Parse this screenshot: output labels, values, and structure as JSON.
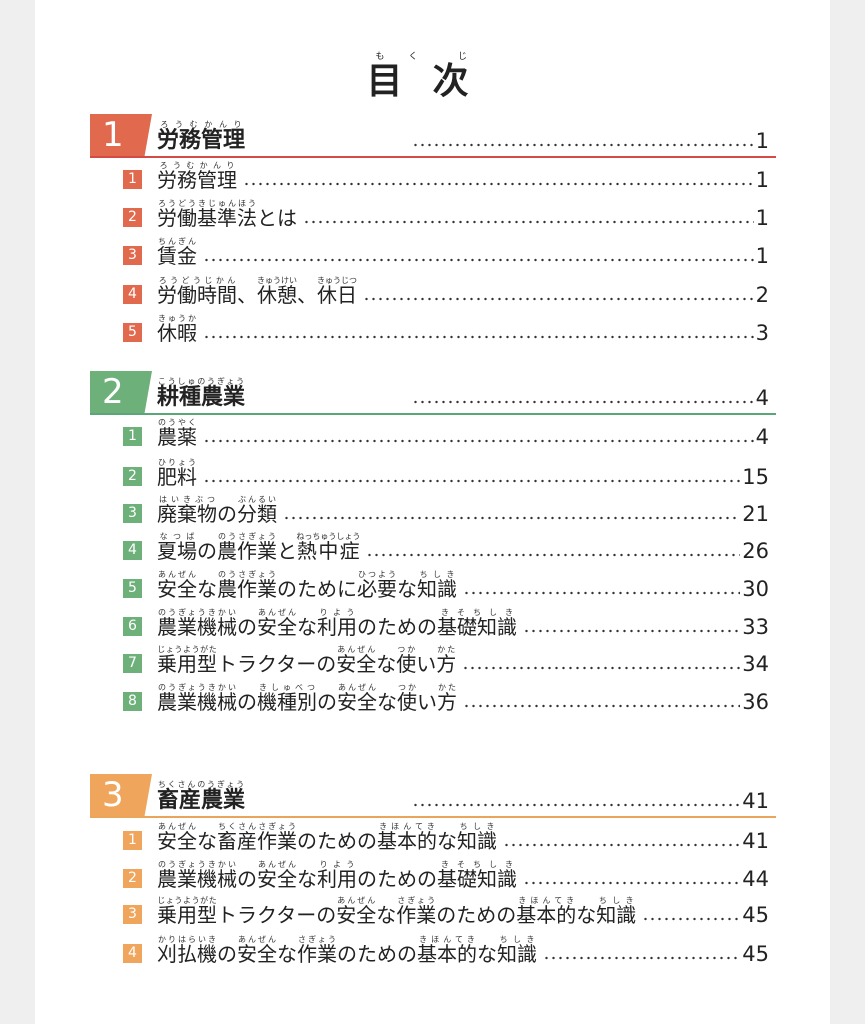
{
  "title": {
    "text": "目次",
    "ruby": [
      [
        "目",
        "もく"
      ],
      [
        "次",
        "じ"
      ]
    ]
  },
  "colors": {
    "s1": "#e0694e",
    "s1_line": "#d44a45",
    "s2": "#6db07a",
    "s2_line": "#5aa676",
    "s3": "#f0a55c",
    "s3_line": "#e9a55a"
  },
  "sections": [
    {
      "number": "1",
      "title": [
        [
          "労務管理",
          "ろうむかんり"
        ]
      ],
      "page": "1",
      "items": [
        {
          "number": "1",
          "title": [
            [
              "労務管理",
              "ろうむかんり"
            ]
          ],
          "page": "1"
        },
        {
          "number": "2",
          "title": [
            [
              "労働基準法",
              "ろうどうきじゅんほう"
            ],
            [
              "とは",
              ""
            ]
          ],
          "page": "1"
        },
        {
          "number": "3",
          "title": [
            [
              "賃金",
              "ちんぎん"
            ]
          ],
          "page": "1"
        },
        {
          "number": "4",
          "title": [
            [
              "労働時間",
              "ろうどうじかん"
            ],
            [
              "、",
              ""
            ],
            [
              "休憩",
              "きゅうけい"
            ],
            [
              "、",
              ""
            ],
            [
              "休日",
              "きゅうじつ"
            ]
          ],
          "page": "2"
        },
        {
          "number": "5",
          "title": [
            [
              "休暇",
              "きゅうか"
            ]
          ],
          "page": "3"
        }
      ]
    },
    {
      "number": "2",
      "title": [
        [
          "耕種農業",
          "こうしゅのうぎょう"
        ]
      ],
      "page": "4",
      "items": [
        {
          "number": "1",
          "title": [
            [
              "農薬",
              "のうやく"
            ]
          ],
          "page": "4"
        },
        {
          "number": "2",
          "title": [
            [
              "肥料",
              "ひりょう"
            ]
          ],
          "page": "15"
        },
        {
          "number": "3",
          "title": [
            [
              "廃棄物",
              "はいきぶつ"
            ],
            [
              "の",
              ""
            ],
            [
              "分類",
              "ぶんるい"
            ]
          ],
          "page": "21"
        },
        {
          "number": "4",
          "title": [
            [
              "夏場",
              "なつば"
            ],
            [
              "の",
              ""
            ],
            [
              "農作業",
              "のうさぎょう"
            ],
            [
              "と",
              ""
            ],
            [
              "熱中症",
              "ねっちゅうしょう"
            ]
          ],
          "page": "26"
        },
        {
          "number": "5",
          "title": [
            [
              "安全",
              "あんぜん"
            ],
            [
              "な",
              ""
            ],
            [
              "農作業",
              "のうさぎょう"
            ],
            [
              "のために",
              ""
            ],
            [
              "必要",
              "ひつよう"
            ],
            [
              "な",
              ""
            ],
            [
              "知識",
              "ちしき"
            ]
          ],
          "page": "30"
        },
        {
          "number": "6",
          "title": [
            [
              "農業機械",
              "のうぎょうきかい"
            ],
            [
              "の",
              ""
            ],
            [
              "安全",
              "あんぜん"
            ],
            [
              "な",
              ""
            ],
            [
              "利用",
              "りよう"
            ],
            [
              "のための",
              ""
            ],
            [
              "基礎知識",
              "きそちしき"
            ]
          ],
          "page": "33"
        },
        {
          "number": "7",
          "title": [
            [
              "乗用型",
              "じょうようがた"
            ],
            [
              "トラクターの",
              ""
            ],
            [
              "安全",
              "あんぜん"
            ],
            [
              "な",
              ""
            ],
            [
              "使",
              "つか"
            ],
            [
              "い",
              ""
            ],
            [
              "方",
              "かた"
            ]
          ],
          "page": "34"
        },
        {
          "number": "8",
          "title": [
            [
              "農業機械",
              "のうぎょうきかい"
            ],
            [
              "の",
              ""
            ],
            [
              "機種別",
              "きしゅべつ"
            ],
            [
              "の",
              ""
            ],
            [
              "安全",
              "あんぜん"
            ],
            [
              "な",
              ""
            ],
            [
              "使",
              "つか"
            ],
            [
              "い",
              ""
            ],
            [
              "方",
              "かた"
            ]
          ],
          "page": "36"
        }
      ]
    },
    {
      "number": "3",
      "title": [
        [
          "畜産農業",
          "ちくさんのうぎょう"
        ]
      ],
      "page": "41",
      "items": [
        {
          "number": "1",
          "title": [
            [
              "安全",
              "あんぜん"
            ],
            [
              "な",
              ""
            ],
            [
              "畜産作業",
              "ちくさんさぎょう"
            ],
            [
              "のための",
              ""
            ],
            [
              "基本的",
              "きほんてき"
            ],
            [
              "な",
              ""
            ],
            [
              "知識",
              "ちしき"
            ]
          ],
          "page": "41"
        },
        {
          "number": "2",
          "title": [
            [
              "農業機械",
              "のうぎょうきかい"
            ],
            [
              "の",
              ""
            ],
            [
              "安全",
              "あんぜん"
            ],
            [
              "な",
              ""
            ],
            [
              "利用",
              "りよう"
            ],
            [
              "のための",
              ""
            ],
            [
              "基礎知識",
              "きそちしき"
            ]
          ],
          "page": "44"
        },
        {
          "number": "3",
          "title": [
            [
              "乗用型",
              "じょうようがた"
            ],
            [
              "トラクターの",
              ""
            ],
            [
              "安全",
              "あんぜん"
            ],
            [
              "な",
              ""
            ],
            [
              "作業",
              "さぎょう"
            ],
            [
              "のための",
              ""
            ],
            [
              "基本的",
              "きほんてき"
            ],
            [
              "な",
              ""
            ],
            [
              "知識",
              "ちしき"
            ]
          ],
          "page": "45"
        },
        {
          "number": "4",
          "title": [
            [
              "刈払機",
              "かりはらいき"
            ],
            [
              "の",
              ""
            ],
            [
              "安全",
              "あんぜん"
            ],
            [
              "な",
              ""
            ],
            [
              "作業",
              "さぎょう"
            ],
            [
              "のための",
              ""
            ],
            [
              "基本的",
              "きほんてき"
            ],
            [
              "な",
              ""
            ],
            [
              "知識",
              "ちしき"
            ]
          ],
          "page": "45"
        }
      ]
    }
  ]
}
